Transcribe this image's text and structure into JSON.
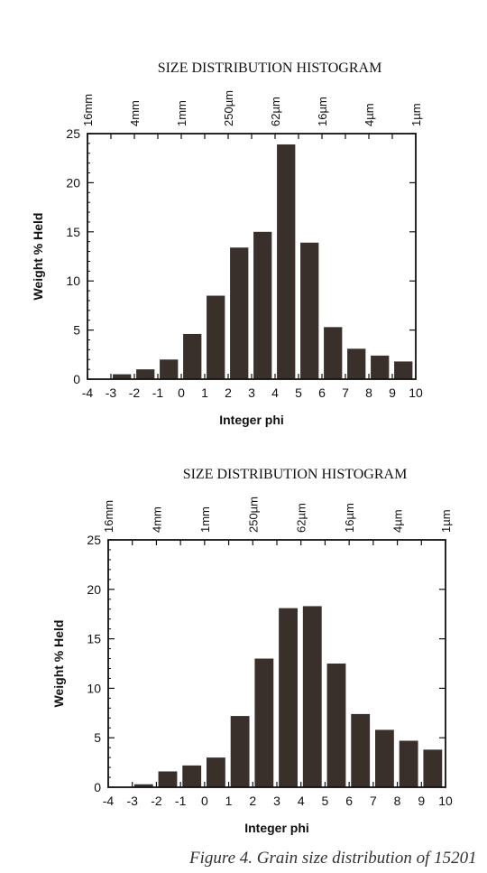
{
  "caption": "Figure 4. Grain size distribution of 15201",
  "colors": {
    "bar": "#3a302b",
    "axis": "#111111",
    "text": "#111111"
  },
  "chart_data": [
    {
      "type": "bar",
      "title": "SIZE DISTRIBUTION HISTOGRAM",
      "xlabel": "Integer phi",
      "ylabel": "Weight % Held",
      "xlim": [
        -4,
        10
      ],
      "ylim": [
        0,
        25
      ],
      "x_ticks": [
        "-4",
        "-3",
        "-2",
        "-1",
        "0",
        "1",
        "2",
        "3",
        "4",
        "5",
        "6",
        "7",
        "8",
        "9",
        "10"
      ],
      "y_ticks": [
        "0",
        "5",
        "10",
        "15",
        "20",
        "25"
      ],
      "top_axis_labels": [
        "16mm",
        "4mm",
        "1mm",
        "250µm",
        "62µm",
        "16µm",
        "4µm",
        "1µm"
      ],
      "categories": [
        "-3",
        "-2",
        "-1",
        "0",
        "1",
        "2",
        "3",
        "4",
        "5",
        "6",
        "7",
        "8",
        "9",
        "10"
      ],
      "values": [
        0.5,
        1.0,
        2.0,
        4.6,
        8.5,
        13.4,
        15.0,
        23.9,
        13.9,
        5.3,
        3.1,
        2.4,
        1.8,
        0
      ]
    },
    {
      "type": "bar",
      "title": "SIZE DISTRIBUTION HISTOGRAM",
      "xlabel": "Integer phi",
      "ylabel": "Weight % Held",
      "xlim": [
        -4,
        10
      ],
      "ylim": [
        0,
        25
      ],
      "x_ticks": [
        "-4",
        "-3",
        "-2",
        "-1",
        "0",
        "1",
        "2",
        "3",
        "4",
        "5",
        "6",
        "7",
        "8",
        "9",
        "10"
      ],
      "y_ticks": [
        "0",
        "5",
        "10",
        "15",
        "20",
        "25"
      ],
      "top_axis_labels": [
        "16mm",
        "4mm",
        "1mm",
        "250µm",
        "62µm",
        "16µm",
        "4µm",
        "1µm"
      ],
      "categories": [
        "-3",
        "-2",
        "-1",
        "0",
        "1",
        "2",
        "3",
        "4",
        "5",
        "6",
        "7",
        "8",
        "9",
        "10"
      ],
      "values": [
        0.3,
        1.6,
        2.2,
        3.0,
        7.2,
        13.0,
        18.1,
        18.3,
        12.5,
        7.4,
        5.8,
        4.7,
        3.8,
        0
      ]
    }
  ]
}
